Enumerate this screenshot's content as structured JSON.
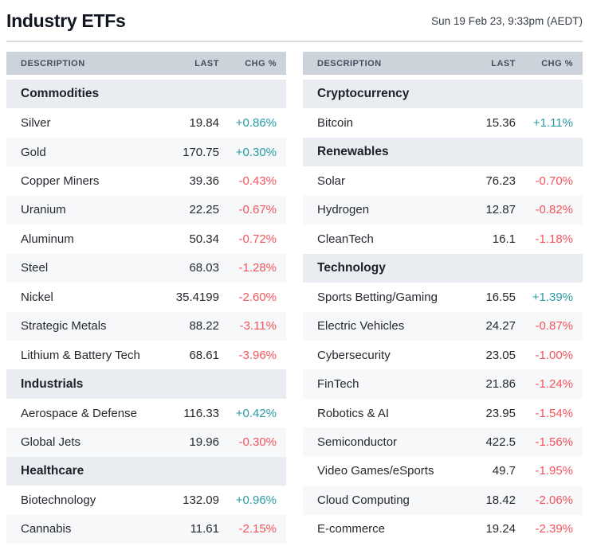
{
  "page": {
    "title": "Industry ETFs",
    "timestamp": "Sun 19 Feb 23, 9:33pm (AEDT)"
  },
  "colors": {
    "up": "#2a9aa4",
    "down": "#f2545c",
    "header_bg": "#ccd3da",
    "section_bg": "#e9edf1",
    "stripe_bg": "#f7f8f9"
  },
  "columns": {
    "description": "DESCRIPTION",
    "last": "LAST",
    "chg": "CHG %"
  },
  "tables": [
    {
      "name": "left",
      "rows": [
        {
          "type": "section",
          "label": "Commodities"
        },
        {
          "type": "data",
          "label": "Silver",
          "last": "19.84",
          "chg": "+0.86%",
          "dir": "up"
        },
        {
          "type": "data",
          "label": "Gold",
          "last": "170.75",
          "chg": "+0.30%",
          "dir": "up"
        },
        {
          "type": "data",
          "label": "Copper Miners",
          "last": "39.36",
          "chg": "-0.43%",
          "dir": "down"
        },
        {
          "type": "data",
          "label": "Uranium",
          "last": "22.25",
          "chg": "-0.67%",
          "dir": "down"
        },
        {
          "type": "data",
          "label": "Aluminum",
          "last": "50.34",
          "chg": "-0.72%",
          "dir": "down"
        },
        {
          "type": "data",
          "label": "Steel",
          "last": "68.03",
          "chg": "-1.28%",
          "dir": "down"
        },
        {
          "type": "data",
          "label": "Nickel",
          "last": "35.4199",
          "chg": "-2.60%",
          "dir": "down"
        },
        {
          "type": "data",
          "label": "Strategic Metals",
          "last": "88.22",
          "chg": "-3.11%",
          "dir": "down"
        },
        {
          "type": "data",
          "label": "Lithium & Battery Tech",
          "last": "68.61",
          "chg": "-3.96%",
          "dir": "down"
        },
        {
          "type": "section",
          "label": "Industrials"
        },
        {
          "type": "data",
          "label": "Aerospace & Defense",
          "last": "116.33",
          "chg": "+0.42%",
          "dir": "up"
        },
        {
          "type": "data",
          "label": "Global Jets",
          "last": "19.96",
          "chg": "-0.30%",
          "dir": "down"
        },
        {
          "type": "section",
          "label": "Healthcare"
        },
        {
          "type": "data",
          "label": "Biotechnology",
          "last": "132.09",
          "chg": "+0.96%",
          "dir": "up"
        },
        {
          "type": "data",
          "label": "Cannabis",
          "last": "11.61",
          "chg": "-2.15%",
          "dir": "down"
        }
      ]
    },
    {
      "name": "right",
      "rows": [
        {
          "type": "section",
          "label": "Cryptocurrency"
        },
        {
          "type": "data",
          "label": "Bitcoin",
          "last": "15.36",
          "chg": "+1.11%",
          "dir": "up"
        },
        {
          "type": "section",
          "label": "Renewables"
        },
        {
          "type": "data",
          "label": "Solar",
          "last": "76.23",
          "chg": "-0.70%",
          "dir": "down"
        },
        {
          "type": "data",
          "label": "Hydrogen",
          "last": "12.87",
          "chg": "-0.82%",
          "dir": "down"
        },
        {
          "type": "data",
          "label": "CleanTech",
          "last": "16.1",
          "chg": "-1.18%",
          "dir": "down"
        },
        {
          "type": "section",
          "label": "Technology"
        },
        {
          "type": "data",
          "label": "Sports Betting/Gaming",
          "last": "16.55",
          "chg": "+1.39%",
          "dir": "up"
        },
        {
          "type": "data",
          "label": "Electric Vehicles",
          "last": "24.27",
          "chg": "-0.87%",
          "dir": "down"
        },
        {
          "type": "data",
          "label": "Cybersecurity",
          "last": "23.05",
          "chg": "-1.00%",
          "dir": "down"
        },
        {
          "type": "data",
          "label": "FinTech",
          "last": "21.86",
          "chg": "-1.24%",
          "dir": "down"
        },
        {
          "type": "data",
          "label": "Robotics & AI",
          "last": "23.95",
          "chg": "-1.54%",
          "dir": "down"
        },
        {
          "type": "data",
          "label": "Semiconductor",
          "last": "422.5",
          "chg": "-1.56%",
          "dir": "down"
        },
        {
          "type": "data",
          "label": "Video Games/eSports",
          "last": "49.7",
          "chg": "-1.95%",
          "dir": "down"
        },
        {
          "type": "data",
          "label": "Cloud Computing",
          "last": "18.42",
          "chg": "-2.06%",
          "dir": "down"
        },
        {
          "type": "data",
          "label": "E-commerce",
          "last": "19.24",
          "chg": "-2.39%",
          "dir": "down"
        }
      ]
    }
  ]
}
